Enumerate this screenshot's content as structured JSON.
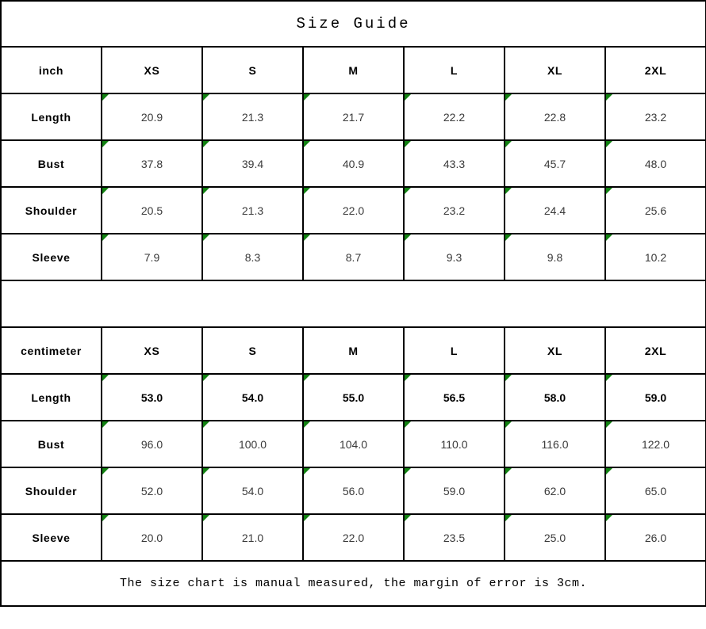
{
  "title": "Size Guide",
  "footer_note": "The size chart is manual measured, the margin of error is 3cm.",
  "marker_color": "#128212",
  "marker_icon": "green-triangle-icon",
  "tables": [
    {
      "unit": "inch",
      "sizes": [
        "XS",
        "S",
        "M",
        "L",
        "XL",
        "2XL"
      ],
      "rows": [
        {
          "label": "Length",
          "bold": false,
          "values": [
            "20.9",
            "21.3",
            "21.7",
            "22.2",
            "22.8",
            "23.2"
          ]
        },
        {
          "label": "Bust",
          "bold": false,
          "values": [
            "37.8",
            "39.4",
            "40.9",
            "43.3",
            "45.7",
            "48.0"
          ]
        },
        {
          "label": "Shoulder",
          "bold": false,
          "values": [
            "20.5",
            "21.3",
            "22.0",
            "23.2",
            "24.4",
            "25.6"
          ]
        },
        {
          "label": "Sleeve",
          "bold": false,
          "values": [
            "7.9",
            "8.3",
            "8.7",
            "9.3",
            "9.8",
            "10.2"
          ]
        }
      ]
    },
    {
      "unit": "centimeter",
      "sizes": [
        "XS",
        "S",
        "M",
        "L",
        "XL",
        "2XL"
      ],
      "rows": [
        {
          "label": "Length",
          "bold": true,
          "values": [
            "53.0",
            "54.0",
            "55.0",
            "56.5",
            "58.0",
            "59.0"
          ]
        },
        {
          "label": "Bust",
          "bold": false,
          "values": [
            "96.0",
            "100.0",
            "104.0",
            "110.0",
            "116.0",
            "122.0"
          ]
        },
        {
          "label": "Shoulder",
          "bold": false,
          "values": [
            "52.0",
            "54.0",
            "56.0",
            "59.0",
            "62.0",
            "65.0"
          ]
        },
        {
          "label": "Sleeve",
          "bold": false,
          "values": [
            "20.0",
            "21.0",
            "22.0",
            "23.5",
            "25.0",
            "26.0"
          ]
        }
      ]
    }
  ]
}
